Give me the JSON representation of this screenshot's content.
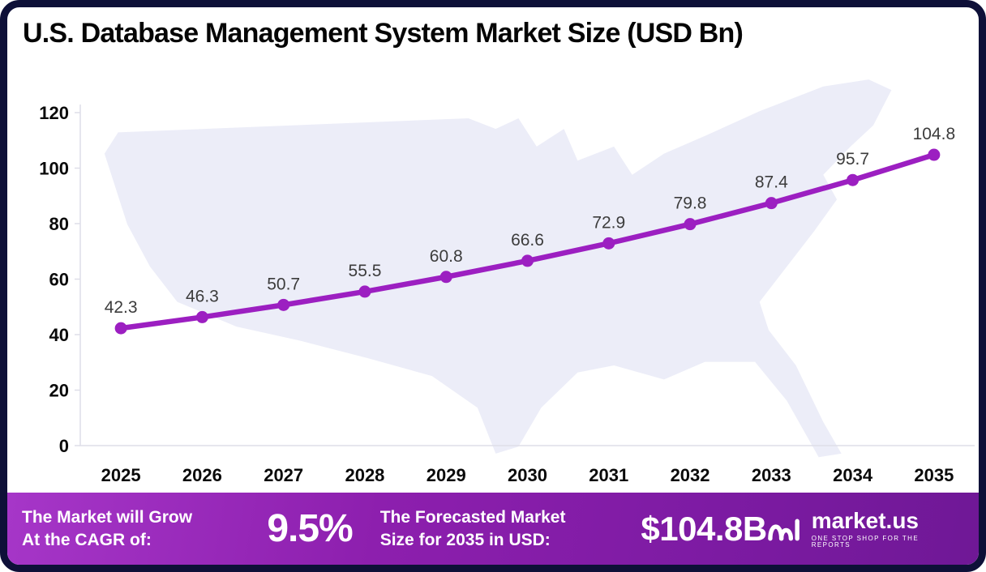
{
  "title": "U.S. Database Management System Market Size (USD Bn)",
  "chart_data": {
    "type": "line",
    "title": "U.S. Database Management System Market Size (USD Bn)",
    "categories": [
      "2025",
      "2026",
      "2027",
      "2028",
      "2029",
      "2030",
      "2031",
      "2032",
      "2033",
      "2034",
      "2035"
    ],
    "values": [
      42.3,
      46.3,
      50.7,
      55.5,
      60.8,
      66.6,
      72.9,
      79.8,
      87.4,
      95.7,
      104.8
    ],
    "ylim": [
      0,
      120
    ],
    "yticks": [
      0,
      20,
      40,
      60,
      80,
      100,
      120
    ],
    "xlabel": "",
    "ylabel": "",
    "grid": false,
    "legend": false,
    "line_color": "#9c1fc1",
    "marker_color": "#9c1fc1",
    "value_label_color": "#3c3c3c"
  },
  "footer": {
    "cagr_label": "The Market will Grow\nAt the CAGR of:",
    "cagr_value": "9.5%",
    "forecast_label": "The Forecasted Market\nSize for 2035 in USD:",
    "forecast_value": "$104.8B",
    "brand_name": "market.us",
    "brand_tagline": "ONE STOP SHOP FOR THE REPORTS"
  },
  "colors": {
    "frame_border": "#0e1038",
    "accent_purple": "#9c1fc1",
    "map_fill": "#ecedf8",
    "footer_gradient_start": "#a636c8",
    "footer_gradient_end": "#6f1896"
  }
}
